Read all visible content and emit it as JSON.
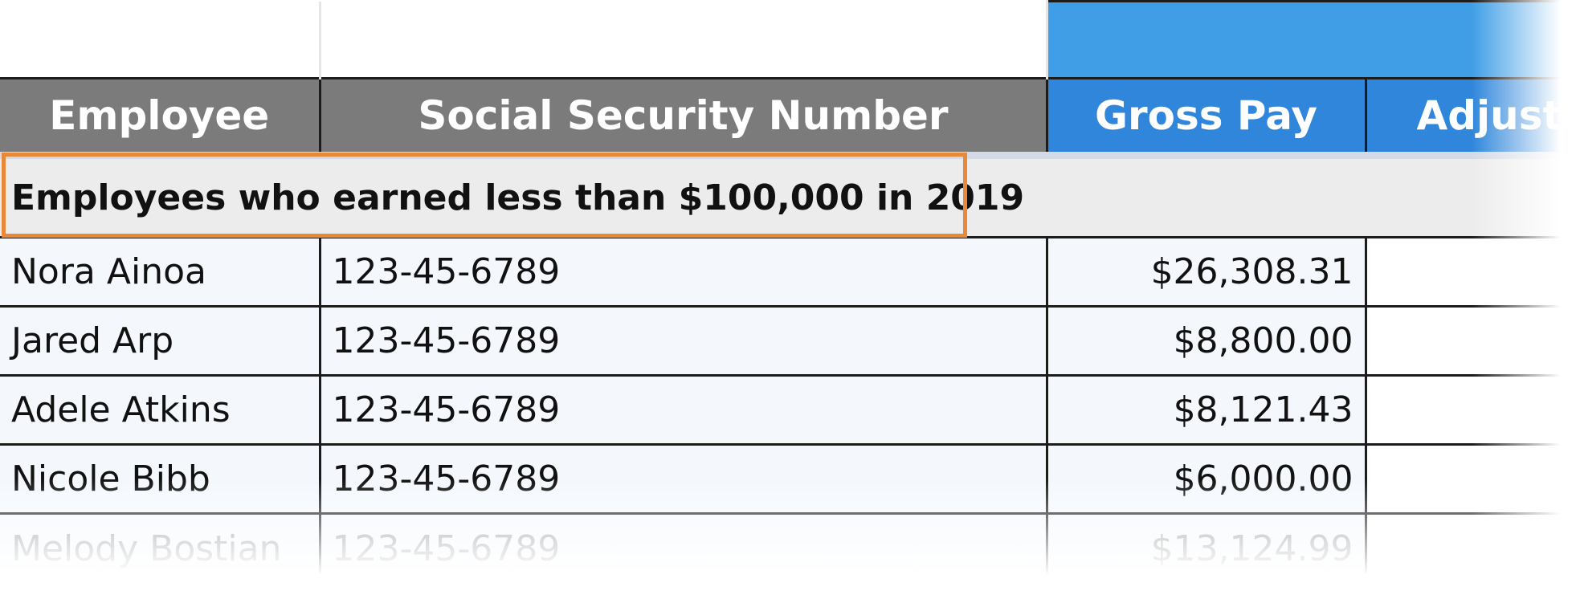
{
  "columns": {
    "employee": "Employee",
    "ssn": "Social Security Number",
    "gross_pay": "Gross Pay",
    "adjusted": "Adjuste"
  },
  "section": {
    "label": "Employees who earned less than $100,000 in 2019"
  },
  "rows": [
    {
      "name": "Nora Ainoa",
      "ssn": "123-45-6789",
      "gross": "$26,308.31"
    },
    {
      "name": "Jared Arp",
      "ssn": "123-45-6789",
      "gross": "$8,800.00"
    },
    {
      "name": "Adele Atkins",
      "ssn": "123-45-6789",
      "gross": "$8,121.43"
    },
    {
      "name": "Nicole Bibb",
      "ssn": "123-45-6789",
      "gross": "$6,000.00"
    },
    {
      "name": "Melody Bostian",
      "ssn": "123-45-6789",
      "gross": "$13,124.99"
    }
  ],
  "colors": {
    "header_gray": "#7b7b7b",
    "header_blue": "#2f86db",
    "band_blue": "#3f9ee6",
    "highlight_orange": "#e8893a"
  }
}
